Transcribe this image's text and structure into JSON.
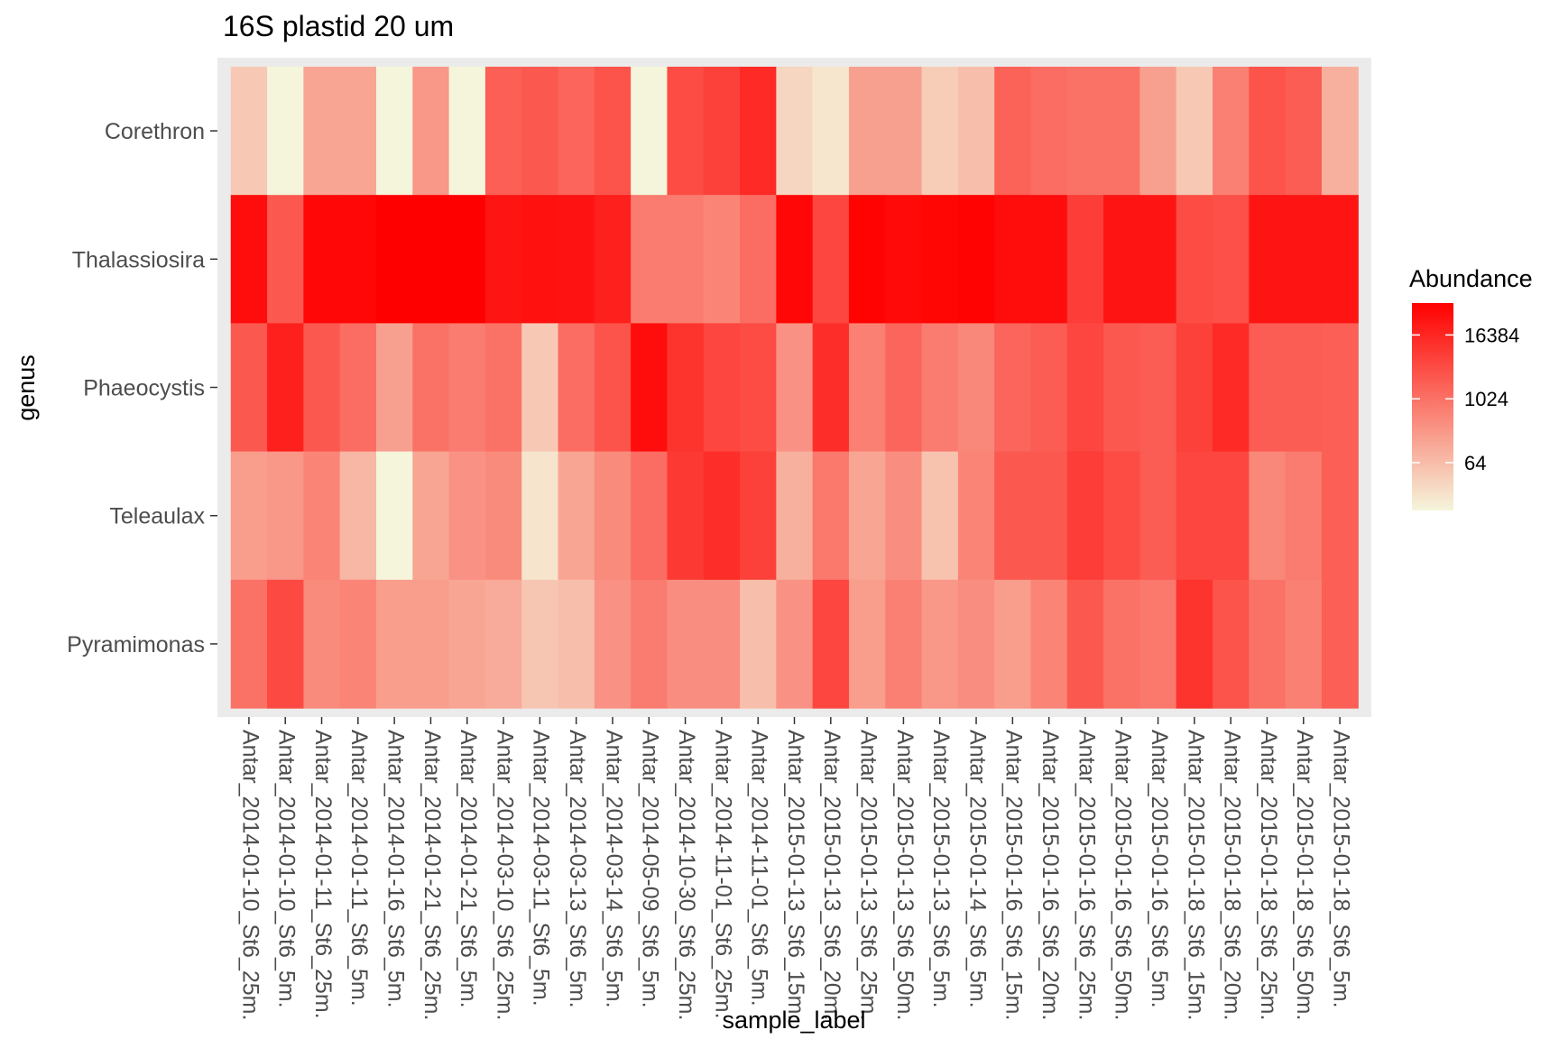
{
  "chart_data": {
    "type": "heatmap",
    "title": "16S plastid 20 um",
    "xlabel": "sample_label",
    "ylabel": "genus",
    "x": [
      "Antar_2014-01-10_St6_25m.",
      "Antar_2014-01-10_St6_5m.",
      "Antar_2014-01-11_St6_25m.",
      "Antar_2014-01-11_St6_5m.",
      "Antar_2014-01-16_St6_5m.",
      "Antar_2014-01-21_St6_25m.",
      "Antar_2014-01-21_St6_5m.",
      "Antar_2014-03-10_St6_25m.",
      "Antar_2014-03-11_St6_5m.",
      "Antar_2014-03-13_St6_5m.",
      "Antar_2014-03-14_St6_5m.",
      "Antar_2014-05-09_St6_5m.",
      "Antar_2014-10-30_St6_25m.",
      "Antar_2014-11-01_St6_25m.",
      "Antar_2014-11-01_St6_5m.",
      "Antar_2015-01-13_St6_15m.",
      "Antar_2015-01-13_St6_20m.",
      "Antar_2015-01-13_St6_25m.",
      "Antar_2015-01-13_St6_50m.",
      "Antar_2015-01-13_St6_5m.",
      "Antar_2015-01-14_St6_5m.",
      "Antar_2015-01-16_St6_15m.",
      "Antar_2015-01-16_St6_20m.",
      "Antar_2015-01-16_St6_25m.",
      "Antar_2015-01-16_St6_50m.",
      "Antar_2015-01-16_St6_5m.",
      "Antar_2015-01-18_St6_15m.",
      "Antar_2015-01-18_St6_20m.",
      "Antar_2015-01-18_St6_25m.",
      "Antar_2015-01-18_St6_50m.",
      "Antar_2015-01-18_St6_5m."
    ],
    "y": [
      "Corethron",
      "Thalassiosira",
      "Phaeocystis",
      "Teleaulax",
      "Pyramimonas"
    ],
    "values": [
      [
        40,
        8,
        150,
        150,
        8,
        250,
        8,
        2000,
        2500,
        1600,
        3000,
        8,
        4000,
        6000,
        14000,
        25,
        14,
        180,
        180,
        35,
        60,
        1800,
        1200,
        1000,
        1000,
        180,
        40,
        600,
        3000,
        2200,
        100
      ],
      [
        40000,
        2500,
        50000,
        50000,
        65000,
        65000,
        65000,
        30000,
        35000,
        32000,
        20000,
        700,
        700,
        500,
        1200,
        50000,
        5000,
        60000,
        45000,
        55000,
        60000,
        40000,
        40000,
        7000,
        30000,
        30000,
        4000,
        3500,
        30000,
        30000,
        30000
      ],
      [
        2500,
        20000,
        2500,
        1200,
        180,
        1000,
        700,
        1000,
        40,
        1200,
        3000,
        40000,
        10000,
        5000,
        4000,
        300,
        12000,
        600,
        1600,
        700,
        450,
        1600,
        2200,
        5000,
        2500,
        2200,
        6000,
        14000,
        2200,
        2200,
        2000
      ],
      [
        200,
        250,
        500,
        80,
        8,
        150,
        300,
        400,
        15,
        150,
        400,
        1200,
        8000,
        12000,
        6000,
        100,
        800,
        150,
        350,
        50,
        500,
        2500,
        2500,
        7000,
        4000,
        2200,
        5000,
        5000,
        450,
        700,
        2000
      ],
      [
        1000,
        4500,
        400,
        500,
        200,
        200,
        150,
        120,
        45,
        60,
        300,
        700,
        350,
        350,
        60,
        300,
        5000,
        200,
        600,
        250,
        350,
        200,
        500,
        2500,
        1000,
        800,
        10000,
        3000,
        1000,
        600,
        2000
      ]
    ],
    "scale": "log2",
    "colors": {
      "low": "#f5f5dc",
      "high": "#ff0000"
    },
    "legend": {
      "title": "Abundance",
      "breaks": [
        64,
        1024,
        16384
      ],
      "labels": [
        "64",
        "1024",
        "16384"
      ],
      "range": [
        8,
        65536
      ],
      "placement": "right"
    },
    "grid": true
  }
}
